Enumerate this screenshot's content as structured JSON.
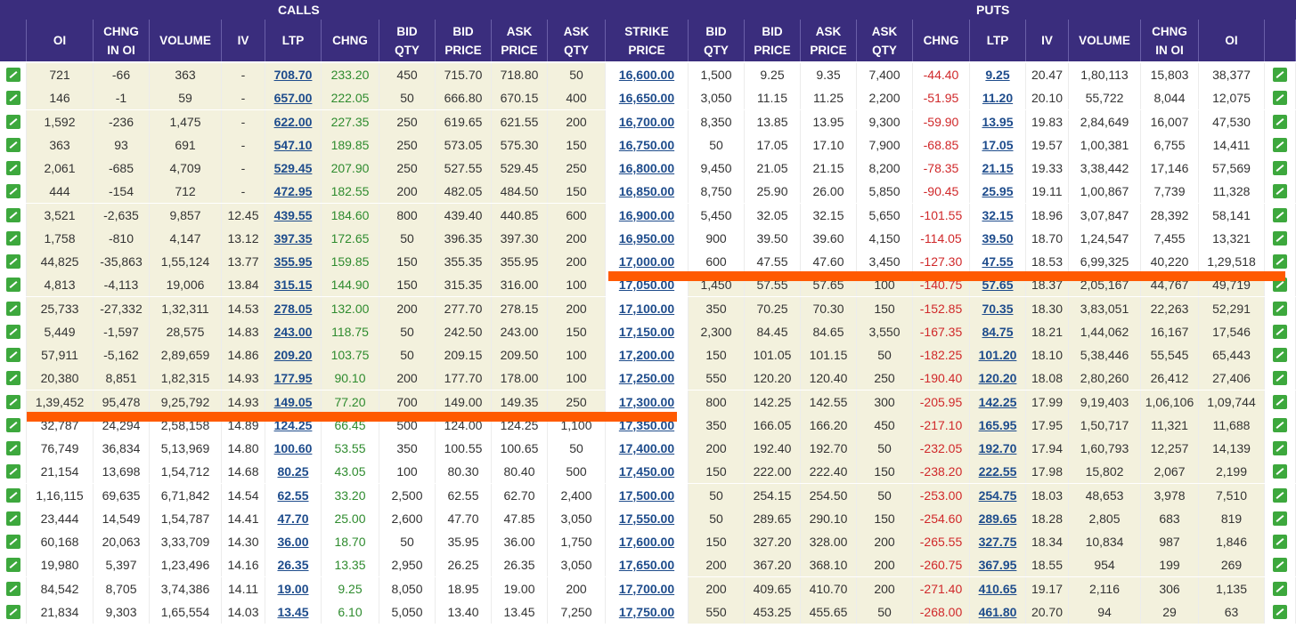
{
  "section": {
    "calls": "CALLS",
    "puts": "PUTS"
  },
  "colors": {
    "header_bg": "#3a2d7d",
    "itm_bg": "#f3f1dd",
    "marker": "#ff5a00",
    "positive": "#2e8b2e",
    "negative": "#d0282a",
    "link": "#1e4c8c"
  },
  "icons": {
    "chart": "chart-line-icon"
  },
  "headers": [
    "OI",
    "CHNG\nIN OI",
    "VOLUME",
    "IV",
    "LTP",
    "CHNG",
    "BID\nQTY",
    "BID\nPRICE",
    "ASK\nPRICE",
    "ASK\nQTY",
    "STRIKE\nPRICE",
    "BID\nQTY",
    "BID\nPRICE",
    "ASK\nPRICE",
    "ASK\nQTY",
    "CHNG",
    "LTP",
    "IV",
    "VOLUME",
    "CHNG\nIN OI",
    "OI"
  ],
  "rows": [
    {
      "c": [
        "721",
        "-66",
        "363",
        "-",
        "708.70",
        "233.20",
        "450",
        "715.70",
        "718.80",
        "50"
      ],
      "strike": "16,600.00",
      "p": [
        "1,500",
        "9.25",
        "9.35",
        "7,400",
        "-44.40",
        "9.25",
        "20.47",
        "1,80,113",
        "15,803",
        "38,377"
      ]
    },
    {
      "c": [
        "146",
        "-1",
        "59",
        "-",
        "657.00",
        "222.05",
        "50",
        "666.80",
        "670.15",
        "400"
      ],
      "strike": "16,650.00",
      "p": [
        "3,050",
        "11.15",
        "11.25",
        "2,200",
        "-51.95",
        "11.20",
        "20.10",
        "55,722",
        "8,044",
        "12,075"
      ]
    },
    {
      "c": [
        "1,592",
        "-236",
        "1,475",
        "-",
        "622.00",
        "227.35",
        "250",
        "619.65",
        "621.55",
        "200"
      ],
      "strike": "16,700.00",
      "p": [
        "8,350",
        "13.85",
        "13.95",
        "9,300",
        "-59.90",
        "13.95",
        "19.83",
        "2,84,649",
        "16,007",
        "47,530"
      ]
    },
    {
      "c": [
        "363",
        "93",
        "691",
        "-",
        "547.10",
        "189.85",
        "250",
        "573.05",
        "575.30",
        "150"
      ],
      "strike": "16,750.00",
      "p": [
        "50",
        "17.05",
        "17.10",
        "7,900",
        "-68.85",
        "17.05",
        "19.57",
        "1,00,381",
        "6,755",
        "14,411"
      ]
    },
    {
      "c": [
        "2,061",
        "-685",
        "4,709",
        "-",
        "529.45",
        "207.90",
        "250",
        "527.55",
        "529.45",
        "250"
      ],
      "strike": "16,800.00",
      "p": [
        "9,450",
        "21.05",
        "21.15",
        "8,200",
        "-78.35",
        "21.15",
        "19.33",
        "3,38,442",
        "17,146",
        "57,569"
      ]
    },
    {
      "c": [
        "444",
        "-154",
        "712",
        "-",
        "472.95",
        "182.55",
        "200",
        "482.05",
        "484.50",
        "150"
      ],
      "strike": "16,850.00",
      "p": [
        "8,750",
        "25.90",
        "26.00",
        "5,850",
        "-90.45",
        "25.95",
        "19.11",
        "1,00,867",
        "7,739",
        "11,328"
      ]
    },
    {
      "c": [
        "3,521",
        "-2,635",
        "9,857",
        "12.45",
        "439.55",
        "184.60",
        "800",
        "439.40",
        "440.85",
        "600"
      ],
      "strike": "16,900.00",
      "p": [
        "5,450",
        "32.05",
        "32.15",
        "5,650",
        "-101.55",
        "32.15",
        "18.96",
        "3,07,847",
        "28,392",
        "58,141"
      ]
    },
    {
      "c": [
        "1,758",
        "-810",
        "4,147",
        "13.12",
        "397.35",
        "172.65",
        "50",
        "396.35",
        "397.30",
        "200"
      ],
      "strike": "16,950.00",
      "p": [
        "900",
        "39.50",
        "39.60",
        "4,150",
        "-114.05",
        "39.50",
        "18.70",
        "1,24,547",
        "7,455",
        "13,321"
      ]
    },
    {
      "c": [
        "44,825",
        "-35,863",
        "1,55,124",
        "13.77",
        "355.95",
        "159.85",
        "150",
        "355.35",
        "355.95",
        "200"
      ],
      "strike": "17,000.00",
      "p": [
        "600",
        "47.55",
        "47.60",
        "3,450",
        "-127.30",
        "47.55",
        "18.53",
        "6,99,325",
        "40,220",
        "1,29,518"
      ]
    },
    {
      "c": [
        "4,813",
        "-4,113",
        "19,006",
        "13.84",
        "315.15",
        "144.90",
        "150",
        "315.35",
        "316.00",
        "100"
      ],
      "strike": "17,050.00",
      "p": [
        "1,450",
        "57.55",
        "57.65",
        "100",
        "-140.75",
        "57.65",
        "18.37",
        "2,05,167",
        "44,767",
        "49,719"
      ]
    },
    {
      "c": [
        "25,733",
        "-27,332",
        "1,32,311",
        "14.53",
        "278.05",
        "132.00",
        "200",
        "277.70",
        "278.15",
        "200"
      ],
      "strike": "17,100.00",
      "p": [
        "350",
        "70.25",
        "70.30",
        "150",
        "-152.85",
        "70.35",
        "18.30",
        "3,83,051",
        "22,263",
        "52,291"
      ]
    },
    {
      "c": [
        "5,449",
        "-1,597",
        "28,575",
        "14.83",
        "243.00",
        "118.75",
        "50",
        "242.50",
        "243.00",
        "150"
      ],
      "strike": "17,150.00",
      "p": [
        "2,300",
        "84.45",
        "84.65",
        "3,550",
        "-167.35",
        "84.75",
        "18.21",
        "1,44,062",
        "16,167",
        "17,546"
      ]
    },
    {
      "c": [
        "57,911",
        "-5,162",
        "2,89,659",
        "14.86",
        "209.20",
        "103.75",
        "50",
        "209.15",
        "209.50",
        "100"
      ],
      "strike": "17,200.00",
      "p": [
        "150",
        "101.05",
        "101.15",
        "50",
        "-182.25",
        "101.20",
        "18.10",
        "5,38,446",
        "55,545",
        "65,443"
      ]
    },
    {
      "c": [
        "20,380",
        "8,851",
        "1,82,315",
        "14.93",
        "177.95",
        "90.10",
        "200",
        "177.70",
        "178.00",
        "100"
      ],
      "strike": "17,250.00",
      "p": [
        "550",
        "120.20",
        "120.40",
        "250",
        "-190.40",
        "120.20",
        "18.08",
        "2,80,260",
        "26,412",
        "27,406"
      ]
    },
    {
      "c": [
        "1,39,452",
        "95,478",
        "9,25,792",
        "14.93",
        "149.05",
        "77.20",
        "700",
        "149.00",
        "149.35",
        "250"
      ],
      "strike": "17,300.00",
      "p": [
        "800",
        "142.25",
        "142.55",
        "300",
        "-205.95",
        "142.25",
        "17.99",
        "9,19,403",
        "1,06,106",
        "1,09,744"
      ]
    },
    {
      "c": [
        "32,787",
        "24,294",
        "2,58,158",
        "14.89",
        "124.25",
        "66.45",
        "500",
        "124.00",
        "124.25",
        "1,100"
      ],
      "strike": "17,350.00",
      "p": [
        "350",
        "166.05",
        "166.20",
        "450",
        "-217.10",
        "165.95",
        "17.95",
        "1,50,717",
        "11,321",
        "11,688"
      ]
    },
    {
      "c": [
        "76,749",
        "36,834",
        "5,13,969",
        "14.80",
        "100.60",
        "53.55",
        "350",
        "100.55",
        "100.65",
        "50"
      ],
      "strike": "17,400.00",
      "p": [
        "200",
        "192.40",
        "192.70",
        "50",
        "-232.05",
        "192.70",
        "17.94",
        "1,60,793",
        "12,257",
        "14,139"
      ]
    },
    {
      "c": [
        "21,154",
        "13,698",
        "1,54,712",
        "14.68",
        "80.25",
        "43.05",
        "100",
        "80.30",
        "80.40",
        "500"
      ],
      "strike": "17,450.00",
      "p": [
        "150",
        "222.00",
        "222.40",
        "150",
        "-238.20",
        "222.55",
        "17.98",
        "15,802",
        "2,067",
        "2,199"
      ]
    },
    {
      "c": [
        "1,16,115",
        "69,635",
        "6,71,842",
        "14.54",
        "62.55",
        "33.20",
        "2,500",
        "62.55",
        "62.70",
        "2,400"
      ],
      "strike": "17,500.00",
      "p": [
        "50",
        "254.15",
        "254.50",
        "50",
        "-253.00",
        "254.75",
        "18.03",
        "48,653",
        "3,978",
        "7,510"
      ]
    },
    {
      "c": [
        "23,444",
        "14,549",
        "1,54,787",
        "14.41",
        "47.70",
        "25.00",
        "2,600",
        "47.70",
        "47.85",
        "3,050"
      ],
      "strike": "17,550.00",
      "p": [
        "50",
        "289.65",
        "290.10",
        "150",
        "-254.60",
        "289.65",
        "18.28",
        "2,805",
        "683",
        "819"
      ]
    },
    {
      "c": [
        "60,168",
        "20,063",
        "3,33,709",
        "14.30",
        "36.00",
        "18.70",
        "50",
        "35.95",
        "36.00",
        "1,750"
      ],
      "strike": "17,600.00",
      "p": [
        "150",
        "327.20",
        "328.00",
        "200",
        "-265.55",
        "327.75",
        "18.34",
        "10,834",
        "987",
        "1,846"
      ]
    },
    {
      "c": [
        "19,980",
        "5,397",
        "1,23,496",
        "14.16",
        "26.35",
        "13.35",
        "2,950",
        "26.25",
        "26.35",
        "3,050"
      ],
      "strike": "17,650.00",
      "p": [
        "200",
        "367.20",
        "368.10",
        "200",
        "-260.75",
        "367.95",
        "18.55",
        "954",
        "199",
        "269"
      ]
    },
    {
      "c": [
        "84,542",
        "8,705",
        "3,74,386",
        "14.11",
        "19.00",
        "9.25",
        "8,050",
        "18.95",
        "19.00",
        "200"
      ],
      "strike": "17,700.00",
      "p": [
        "200",
        "409.65",
        "410.70",
        "200",
        "-271.40",
        "410.65",
        "19.17",
        "2,116",
        "306",
        "1,135"
      ]
    },
    {
      "c": [
        "21,834",
        "9,303",
        "1,65,554",
        "14.03",
        "13.45",
        "6.10",
        "5,050",
        "13.40",
        "13.45",
        "7,250"
      ],
      "strike": "17,750.00",
      "p": [
        "550",
        "453.25",
        "455.65",
        "50",
        "-268.00",
        "461.80",
        "20.70",
        "94",
        "29",
        "63"
      ]
    }
  ]
}
